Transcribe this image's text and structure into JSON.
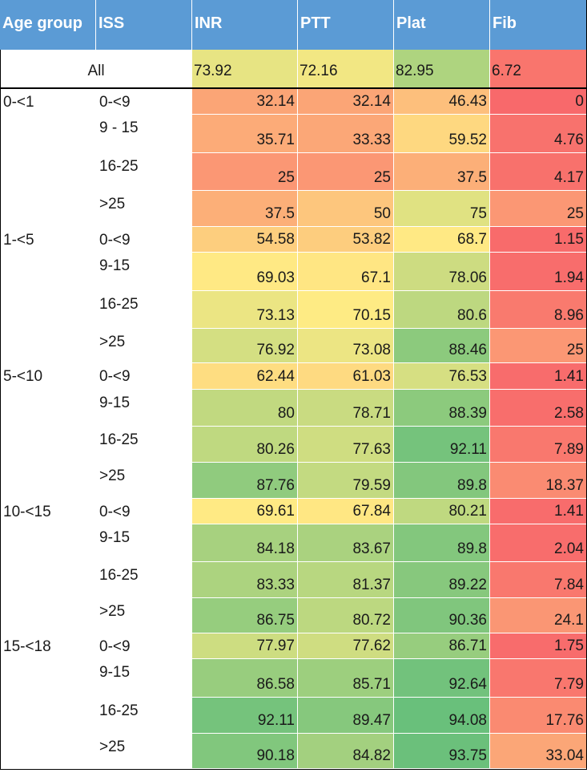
{
  "columns": [
    "Age group",
    "ISS",
    "INR",
    "PTT",
    "Plat",
    "Fib"
  ],
  "all_row": {
    "label": "All",
    "INR": "73.92",
    "PTT": "72.16",
    "Plat": "82.95",
    "Fib": "6.72"
  },
  "groups": [
    {
      "age": "0-<1",
      "rows": [
        {
          "iss": "0-<9",
          "INR": "32.14",
          "PTT": "32.14",
          "Plat": "46.43",
          "Fib": "0"
        },
        {
          "iss": "9 - 15",
          "INR": "35.71",
          "PTT": "33.33",
          "Plat": "59.52",
          "Fib": "4.76"
        },
        {
          "iss": "16-25",
          "INR": "25",
          "PTT": "25",
          "Plat": "37.5",
          "Fib": "4.17"
        },
        {
          "iss": ">25",
          "INR": "37.5",
          "PTT": "50",
          "Plat": "75",
          "Fib": "25"
        }
      ]
    },
    {
      "age": "1-<5",
      "rows": [
        {
          "iss": "0-<9",
          "INR": "54.58",
          "PTT": "53.82",
          "Plat": "68.7",
          "Fib": "1.15"
        },
        {
          "iss": "9-15",
          "INR": "69.03",
          "PTT": "67.1",
          "Plat": "78.06",
          "Fib": "1.94"
        },
        {
          "iss": "16-25",
          "INR": "73.13",
          "PTT": "70.15",
          "Plat": "80.6",
          "Fib": "8.96"
        },
        {
          "iss": ">25",
          "INR": "76.92",
          "PTT": "73.08",
          "Plat": "88.46",
          "Fib": "25"
        }
      ]
    },
    {
      "age": "5-<10",
      "rows": [
        {
          "iss": "0-<9",
          "INR": "62.44",
          "PTT": "61.03",
          "Plat": "76.53",
          "Fib": "1.41"
        },
        {
          "iss": "9-15",
          "INR": "80",
          "PTT": "78.71",
          "Plat": "88.39",
          "Fib": "2.58"
        },
        {
          "iss": "16-25",
          "INR": "80.26",
          "PTT": "77.63",
          "Plat": "92.11",
          "Fib": "7.89"
        },
        {
          "iss": ">25",
          "INR": "87.76",
          "PTT": "79.59",
          "Plat": "89.8",
          "Fib": "18.37"
        }
      ]
    },
    {
      "age": "10-<15",
      "rows": [
        {
          "iss": "0-<9",
          "INR": "69.61",
          "PTT": "67.84",
          "Plat": "80.21",
          "Fib": "1.41"
        },
        {
          "iss": "9-15",
          "INR": "84.18",
          "PTT": "83.67",
          "Plat": "89.8",
          "Fib": "2.04"
        },
        {
          "iss": "16-25",
          "INR": "83.33",
          "PTT": "81.37",
          "Plat": "89.22",
          "Fib": "7.84"
        },
        {
          "iss": ">25",
          "INR": "86.75",
          "PTT": "80.72",
          "Plat": "90.36",
          "Fib": "24.1"
        }
      ]
    },
    {
      "age": "15-<18",
      "rows": [
        {
          "iss": "0-<9",
          "INR": "77.97",
          "PTT": "77.62",
          "Plat": "86.71",
          "Fib": "1.75"
        },
        {
          "iss": "9-15",
          "INR": "86.58",
          "PTT": "85.71",
          "Plat": "92.64",
          "Fib": "7.79"
        },
        {
          "iss": "16-25",
          "INR": "92.11",
          "PTT": "89.47",
          "Plat": "94.08",
          "Fib": "17.76"
        },
        {
          "iss": ">25",
          "INR": "90.18",
          "PTT": "84.82",
          "Plat": "93.75",
          "Fib": "33.04"
        }
      ]
    }
  ],
  "colors": {
    "header_bg": "#5b9bd5",
    "scale_low": "#f8696b",
    "scale_mid": "#ffeb84",
    "scale_high": "#63be7b"
  }
}
